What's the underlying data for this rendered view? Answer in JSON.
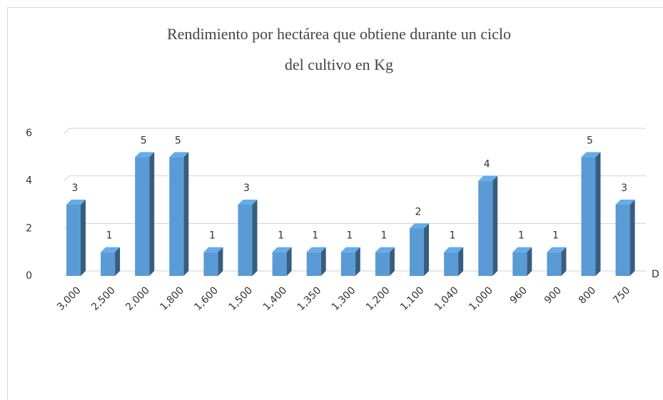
{
  "chart_data": {
    "type": "bar3d",
    "title": [
      "Rendimiento  por hectárea que obtiene durante un ciclo",
      "del cultivo  en Kg"
    ],
    "categories": [
      "3,000",
      "2,500",
      "2,000",
      "1,800",
      "1,600",
      "1,500",
      "1,400",
      "1,350",
      "1,300",
      "1,200",
      "1,100",
      "1,040",
      "1,000",
      "960",
      "900",
      "800",
      "750"
    ],
    "series": [
      {
        "name": "D",
        "color": "#5b9bd5",
        "values": [
          3,
          1,
          5,
          5,
          1,
          3,
          1,
          1,
          1,
          1,
          2,
          1,
          4,
          1,
          1,
          5,
          3
        ]
      }
    ],
    "ylim": [
      0,
      6
    ],
    "yticks": [
      0,
      2,
      4,
      6
    ],
    "grid": true,
    "data_labels": true,
    "legend": "right"
  }
}
